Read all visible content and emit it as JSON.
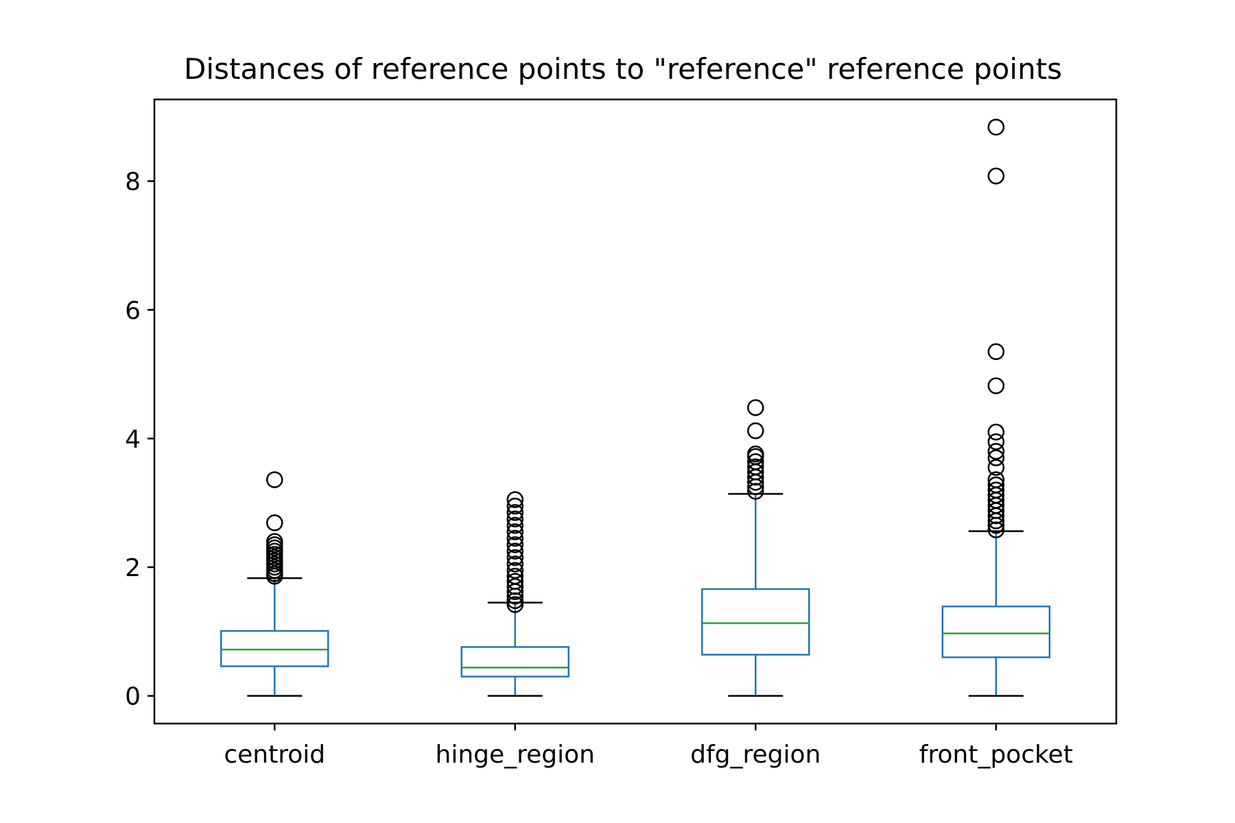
{
  "chart_data": {
    "type": "box",
    "title": "Distances of reference points to \"reference\" reference points",
    "xlabel": "",
    "ylabel": "",
    "ylim": [
      -0.43,
      9.27
    ],
    "yticks": [
      0,
      2,
      4,
      6,
      8
    ],
    "grid": false,
    "categories": [
      "centroid",
      "hinge_region",
      "dfg_region",
      "front_pocket"
    ],
    "series": [
      {
        "category": "centroid",
        "whisker_low": 0.0,
        "q1": 0.46,
        "median": 0.72,
        "q3": 1.01,
        "whisker_high": 1.83,
        "outliers": [
          1.86,
          1.9,
          1.95,
          2.0,
          2.05,
          2.1,
          2.15,
          2.2,
          2.25,
          2.3,
          2.35,
          2.4,
          2.69,
          3.36
        ]
      },
      {
        "category": "hinge_region",
        "whisker_low": 0.0,
        "q1": 0.3,
        "median": 0.44,
        "q3": 0.76,
        "whisker_high": 1.45,
        "outliers": [
          1.42,
          1.48,
          1.55,
          1.62,
          1.7,
          1.78,
          1.86,
          1.95,
          2.05,
          2.15,
          2.25,
          2.35,
          2.45,
          2.55,
          2.65,
          2.75,
          2.85,
          2.95,
          3.05
        ]
      },
      {
        "category": "dfg_region",
        "whisker_low": 0.0,
        "q1": 0.64,
        "median": 1.13,
        "q3": 1.66,
        "whisker_high": 3.14,
        "outliers": [
          3.18,
          3.25,
          3.32,
          3.4,
          3.48,
          3.56,
          3.64,
          3.72,
          3.76,
          4.12,
          4.48
        ]
      },
      {
        "category": "front_pocket",
        "whisker_low": 0.0,
        "q1": 0.6,
        "median": 0.97,
        "q3": 1.39,
        "whisker_high": 2.56,
        "outliers": [
          2.58,
          2.65,
          2.72,
          2.8,
          2.88,
          2.96,
          3.04,
          3.12,
          3.2,
          3.28,
          3.36,
          3.55,
          3.7,
          3.8,
          3.95,
          4.1,
          4.82,
          5.35,
          8.08,
          8.84
        ]
      }
    ]
  },
  "colors": {
    "box": "#1f77b4",
    "median": "#2ca02c",
    "whisker_cap": "#000000",
    "outlier_edge": "#000000",
    "frame": "#000000"
  }
}
